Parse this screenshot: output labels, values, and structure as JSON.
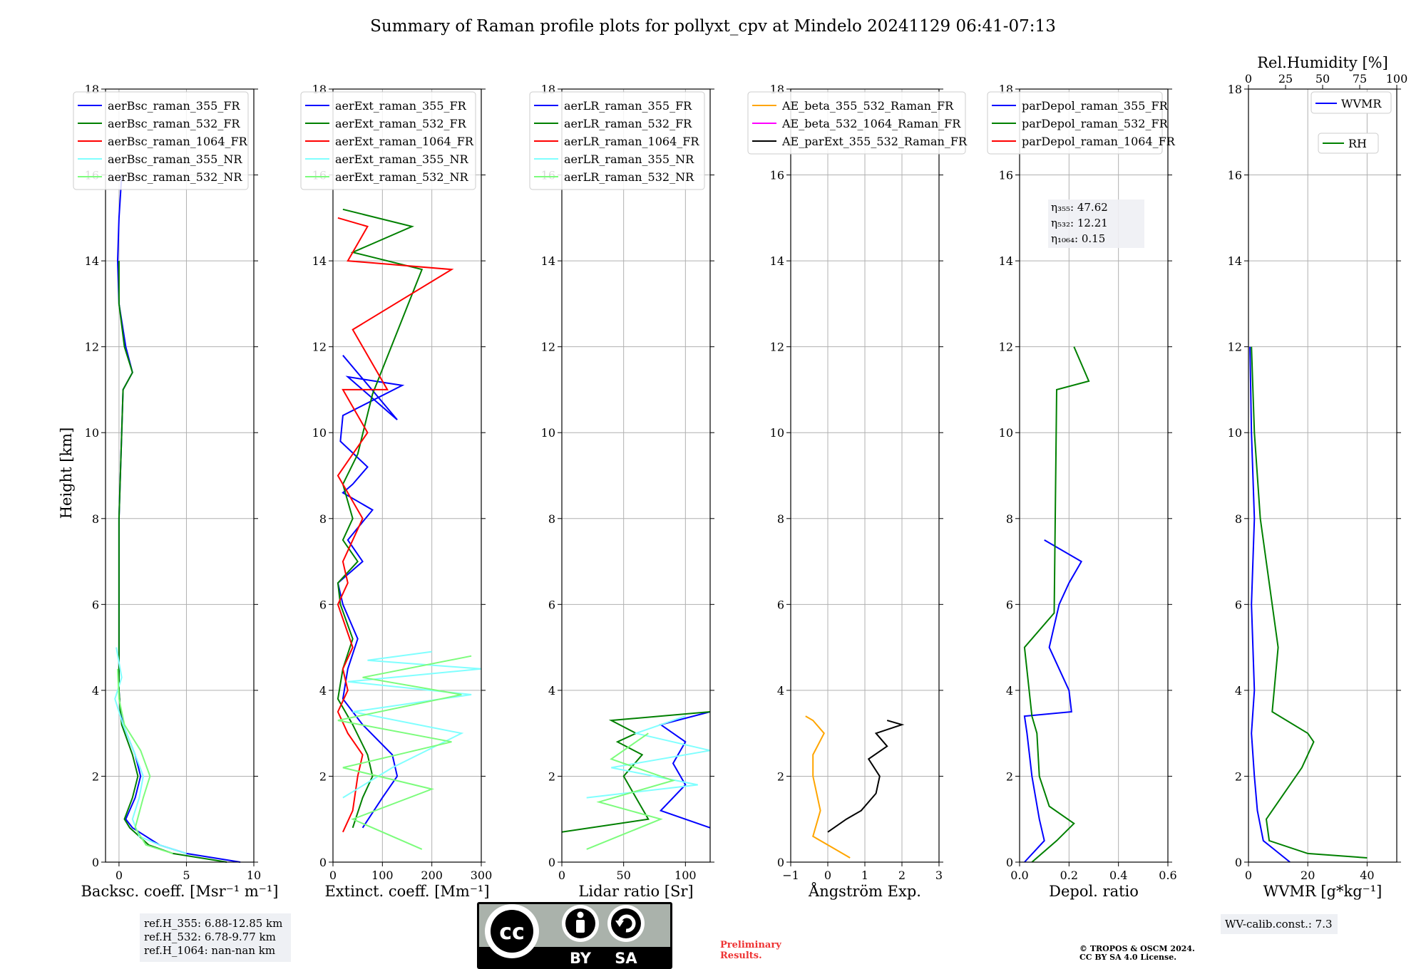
{
  "title": "Summary of Raman profile plots for pollyxt_cpv at Mindelo 20241129 06:41-07:13",
  "ylabel": "Height [km]",
  "colors": {
    "blue": "#0000ff",
    "green": "#008000",
    "red": "#ff0000",
    "cyan": "#80ffff",
    "lightgreen": "#7cfc7c",
    "orange": "#ffa500",
    "magenta": "#ff00ff",
    "black": "#000000"
  },
  "panels": [
    {
      "key": "bsc",
      "xlabel": "Backsc. coeff. [Msr$^{-1}$ m$^{-1}$]",
      "xlabel_text": "Backsc. coeff. [Msr⁻¹ m⁻¹]",
      "xlim": [
        -1,
        10
      ],
      "xticks": [
        0,
        5,
        10
      ],
      "xtick_labels": [
        "0",
        "5",
        "10"
      ],
      "legend": [
        "aerBsc_raman_355_FR",
        "aerBsc_raman_532_FR",
        "aerBsc_raman_1064_FR",
        "aerBsc_raman_355_NR",
        "aerBsc_raman_532_NR"
      ]
    },
    {
      "key": "ext",
      "xlabel_text": "Extinct. coeff. [Mm⁻¹]",
      "xlim": [
        0,
        300
      ],
      "xticks": [
        0,
        100,
        200,
        300
      ],
      "xtick_labels": [
        "0",
        "100",
        "200",
        "300"
      ],
      "legend": [
        "aerExt_raman_355_FR",
        "aerExt_raman_532_FR",
        "aerExt_raman_1064_FR",
        "aerExt_raman_355_NR",
        "aerExt_raman_532_NR"
      ]
    },
    {
      "key": "lr",
      "xlabel_text": "Lidar ratio [Sr]",
      "xlim": [
        0,
        120
      ],
      "xticks": [
        0,
        50,
        100
      ],
      "xtick_labels": [
        "0",
        "50",
        "100"
      ],
      "legend": [
        "aerLR_raman_355_FR",
        "aerLR_raman_532_FR",
        "aerLR_raman_1064_FR",
        "aerLR_raman_355_NR",
        "aerLR_raman_532_NR"
      ]
    },
    {
      "key": "ae",
      "xlabel_text": "Ångström Exp.",
      "xlim": [
        -1,
        3
      ],
      "xticks": [
        -1,
        0,
        1,
        2,
        3
      ],
      "xtick_labels": [
        "−1",
        "0",
        "1",
        "2",
        "3"
      ],
      "legend": [
        "AE_beta_355_532_Raman_FR",
        "AE_beta_532_1064_Raman_FR",
        "AE_parExt_355_532_Raman_FR"
      ]
    },
    {
      "key": "depol",
      "xlabel_text": "Depol. ratio",
      "xlim": [
        0,
        0.6
      ],
      "xticks": [
        0,
        0.2,
        0.4,
        0.6
      ],
      "xtick_labels": [
        "0.0",
        "0.2",
        "0.4",
        "0.6"
      ],
      "legend": [
        "parDepol_raman_355_FR",
        "parDepol_raman_532_FR",
        "parDepol_raman_1064_FR"
      ],
      "eta": [
        "η₃₅₅: 47.62",
        "η₅₃₂: 12.21",
        "η₁₀₆₄: 0.15"
      ]
    },
    {
      "key": "wv",
      "xlabel_text": "WVMR [g*kg⁻¹]",
      "xlim": [
        0,
        50
      ],
      "xticks": [
        0,
        20,
        40
      ],
      "xtick_labels": [
        "0",
        "20",
        "40"
      ],
      "legend": [
        "WVMR"
      ],
      "legend2": [
        "RH"
      ],
      "top_label": "Rel.Humidity [%]",
      "top_ticks": [
        "0",
        "25",
        "50",
        "75",
        "100"
      ]
    }
  ],
  "yticks": [
    "0",
    "2",
    "4",
    "6",
    "8",
    "10",
    "12",
    "14",
    "16",
    "18"
  ],
  "notes": {
    "ref": [
      "ref.H_355: 6.88-12.85 km",
      "ref.H_532: 6.78-9.77 km",
      "ref.H_1064: nan-nan km"
    ],
    "wv_calib": "WV-calib.const.: 7.3",
    "prelim": [
      "Preliminary",
      "Results."
    ],
    "copyright": [
      "© TROPOS & OSCM 2024.",
      "CC BY SA 4.0 License."
    ],
    "badge": {
      "cc": "cc",
      "by": "BY",
      "sa": "SA"
    }
  },
  "chart_data": [
    {
      "type": "line",
      "title": "",
      "xlabel": "Backsc. coeff. [Msr⁻¹ m⁻¹]",
      "ylabel": "Height [km]",
      "xlim": [
        -1,
        10
      ],
      "ylim": [
        0,
        18
      ],
      "series": [
        {
          "name": "aerBsc_raman_355_FR",
          "x": [
            9,
            5,
            3,
            2,
            1,
            0.5,
            1.2,
            1.6,
            1.2,
            0.3,
            0.1,
            0,
            0,
            0,
            0.2,
            0.3,
            1,
            0.5,
            0,
            -0.1,
            0,
            0.2
          ],
          "y": [
            0,
            0.2,
            0.4,
            0.6,
            0.8,
            1,
            1.5,
            2,
            2.5,
            3.2,
            3.5,
            4,
            6,
            8,
            10,
            11,
            11.4,
            12,
            13,
            14,
            15,
            16
          ]
        },
        {
          "name": "aerBsc_raman_532_FR",
          "x": [
            8,
            4,
            2.2,
            1.5,
            0.8,
            0.4,
            1,
            1.4,
            1,
            0.2,
            0.1,
            0,
            0,
            0,
            0.2,
            0.3,
            1,
            0.4,
            0,
            0
          ],
          "y": [
            0,
            0.2,
            0.4,
            0.6,
            0.8,
            1,
            1.5,
            2,
            2.5,
            3.2,
            3.5,
            4,
            6,
            8,
            10,
            11,
            11.4,
            12,
            13,
            14
          ]
        },
        {
          "name": "aerBsc_raman_1064_FR",
          "x": [],
          "y": []
        },
        {
          "name": "aerBsc_raman_355_NR",
          "x": [
            5,
            3,
            1.5,
            1,
            1.5,
            1.8,
            1.2,
            0.3,
            -0.3,
            0.2,
            -0.2
          ],
          "y": [
            0.2,
            0.4,
            0.6,
            1,
            1.5,
            2,
            2.5,
            3.2,
            3.8,
            4.3,
            5
          ]
        },
        {
          "name": "aerBsc_raman_532_NR",
          "x": [
            4,
            2,
            1.2,
            1.8,
            2.3,
            1.6,
            0.4,
            0,
            -0.1
          ],
          "y": [
            0.2,
            0.4,
            0.8,
            1.5,
            2,
            2.6,
            3.2,
            3.8,
            4.5
          ]
        }
      ]
    },
    {
      "type": "line",
      "title": "",
      "xlabel": "Extinct. coeff. [Mm⁻¹]",
      "ylabel": "Height [km]",
      "xlim": [
        0,
        300
      ],
      "ylim": [
        0,
        18
      ],
      "series": [
        {
          "name": "aerExt_raman_355_FR",
          "x": [
            60,
            100,
            130,
            120,
            60,
            20,
            30,
            50,
            20,
            10,
            60,
            30,
            80,
            20,
            40,
            70,
            15,
            20,
            140,
            30,
            130,
            20
          ],
          "y": [
            0.8,
            1.5,
            2,
            2.5,
            3.2,
            3.8,
            4.5,
            5.2,
            6,
            6.5,
            7,
            7.5,
            8.2,
            8.6,
            8.8,
            9.2,
            9.8,
            10.4,
            11.1,
            11.3,
            10.3,
            11.8
          ]
        },
        {
          "name": "aerExt_raman_532_FR",
          "x": [
            40,
            60,
            80,
            70,
            40,
            10,
            20,
            40,
            15,
            10,
            50,
            20,
            40,
            20,
            50,
            80,
            180,
            40,
            160,
            20
          ],
          "y": [
            0.8,
            1.5,
            2,
            2.5,
            3.2,
            3.8,
            4.5,
            5.2,
            6,
            6.5,
            7,
            7.5,
            8,
            8.8,
            9.5,
            10.9,
            13.8,
            14.2,
            14.8,
            15.2
          ]
        },
        {
          "name": "aerExt_raman_1064_FR",
          "x": [
            20,
            40,
            50,
            60,
            30,
            10,
            30,
            20,
            40,
            10,
            30,
            20,
            60,
            10,
            70,
            20,
            110,
            40,
            240,
            30,
            70,
            10
          ],
          "y": [
            0.7,
            1.2,
            2,
            2.5,
            3,
            3.5,
            4,
            4.5,
            5,
            6,
            6.5,
            7,
            8,
            9,
            10,
            11,
            11,
            12.4,
            13.8,
            14,
            14.8,
            15
          ]
        },
        {
          "name": "aerExt_raman_355_NR",
          "x": [
            20,
            120,
            260,
            40,
            280,
            30,
            300,
            70,
            200
          ],
          "y": [
            1.5,
            2.2,
            3,
            3.5,
            3.9,
            4.2,
            4.5,
            4.7,
            4.9
          ]
        },
        {
          "name": "aerExt_raman_532_NR",
          "x": [
            180,
            40,
            200,
            20,
            240,
            10,
            260,
            60,
            280
          ],
          "y": [
            0.3,
            1,
            1.7,
            2.2,
            2.8,
            3.3,
            3.9,
            4.3,
            4.8
          ]
        }
      ]
    },
    {
      "type": "line",
      "title": "",
      "xlabel": "Lidar ratio [Sr]",
      "ylabel": "Height [km]",
      "xlim": [
        0,
        120
      ],
      "ylim": [
        0,
        18
      ],
      "series": [
        {
          "name": "aerLR_raman_355_FR",
          "x": [
            120,
            80,
            100,
            90,
            100,
            80,
            120
          ],
          "y": [
            0.8,
            1.2,
            1.8,
            2.3,
            2.8,
            3.2,
            3.5
          ]
        },
        {
          "name": "aerLR_raman_532_FR",
          "x": [
            0,
            70,
            60,
            50,
            65,
            45,
            60,
            40,
            120
          ],
          "y": [
            0.7,
            1,
            1.5,
            2,
            2.5,
            2.8,
            3,
            3.3,
            3.5
          ]
        },
        {
          "name": "aerLR_raman_1064_FR",
          "x": [],
          "y": []
        },
        {
          "name": "aerLR_raman_355_NR",
          "x": [
            20,
            110,
            40,
            120,
            60,
            100
          ],
          "y": [
            1.5,
            1.8,
            2.2,
            2.6,
            3,
            3.4
          ]
        },
        {
          "name": "aerLR_raman_532_NR",
          "x": [
            20,
            80,
            30,
            90,
            40,
            70
          ],
          "y": [
            0.3,
            1,
            1.4,
            1.9,
            2.4,
            3
          ]
        }
      ]
    },
    {
      "type": "line",
      "title": "",
      "xlabel": "Ångström Exp.",
      "ylabel": "Height [km]",
      "xlim": [
        -1,
        3
      ],
      "ylim": [
        0,
        18
      ],
      "series": [
        {
          "name": "AE_beta_355_532_Raman_FR",
          "x": [
            0.6,
            0.2,
            -0.4,
            -0.2,
            -0.4,
            -0.4,
            -0.1,
            -0.4,
            -0.6
          ],
          "y": [
            0.1,
            0.3,
            0.6,
            1.2,
            2,
            2.5,
            3,
            3.3,
            3.4
          ]
        },
        {
          "name": "AE_beta_532_1064_Raman_FR",
          "x": [],
          "y": []
        },
        {
          "name": "AE_parExt_355_532_Raman_FR",
          "x": [
            0,
            0.5,
            0.9,
            1.3,
            1.4,
            1.1,
            1.6,
            1.3,
            2,
            1.6
          ],
          "y": [
            0.7,
            1,
            1.2,
            1.6,
            2,
            2.4,
            2.7,
            3,
            3.2,
            3.3
          ]
        }
      ]
    },
    {
      "type": "line",
      "title": "",
      "xlabel": "Depol. ratio",
      "ylabel": "Height [km]",
      "xlim": [
        0,
        0.6
      ],
      "ylim": [
        0,
        18
      ],
      "series": [
        {
          "name": "parDepol_raman_355_FR",
          "x": [
            0.02,
            0.1,
            0.08,
            0.05,
            0.03,
            0.02,
            0.21,
            0.2,
            0.12,
            0.16,
            0.2,
            0.25,
            0.1
          ],
          "y": [
            0,
            0.5,
            1,
            2,
            3,
            3.4,
            3.5,
            4,
            5,
            6,
            6.5,
            7,
            7.5
          ]
        },
        {
          "name": "parDepol_raman_532_FR",
          "x": [
            0.05,
            0.15,
            0.22,
            0.12,
            0.08,
            0.07,
            0.05,
            0.02,
            0.14,
            0.15,
            0.28,
            0.22
          ],
          "y": [
            0,
            0.5,
            0.9,
            1.3,
            2,
            3,
            3.4,
            5,
            5.8,
            11,
            11.2,
            12
          ]
        },
        {
          "name": "parDepol_raman_1064_FR",
          "x": [],
          "y": []
        }
      ]
    },
    {
      "type": "line",
      "title": "",
      "xlabel": "WVMR [g*kg⁻¹]",
      "ylabel": "Height [km]",
      "xlim": [
        0,
        50
      ],
      "ylim": [
        0,
        18
      ],
      "series": [
        {
          "name": "WVMR",
          "x": [
            14,
            5,
            3,
            2,
            1,
            2,
            1,
            2,
            1,
            0.5
          ],
          "y": [
            0,
            0.5,
            1.2,
            2,
            3,
            4,
            6,
            8,
            10,
            12
          ]
        },
        {
          "name": "RH",
          "x": [
            40,
            20,
            7,
            6,
            12,
            18,
            22,
            20,
            8,
            10,
            4,
            2,
            1
          ],
          "y": [
            0.1,
            0.2,
            0.5,
            1,
            1.6,
            2.2,
            2.8,
            3,
            3.5,
            5,
            8,
            10,
            12
          ]
        }
      ]
    }
  ]
}
